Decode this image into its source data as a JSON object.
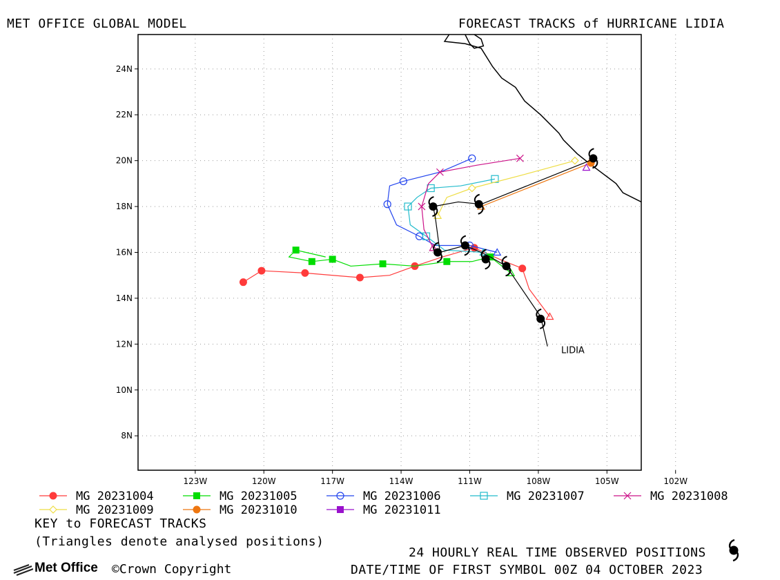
{
  "header": {
    "left_title": "MET OFFICE GLOBAL MODEL",
    "right_title": "FORECAST TRACKS of HURRICANE LIDIA"
  },
  "footer": {
    "key_title": "KEY to FORECAST TRACKS",
    "key_note": "(Triangles denote analysed positions)",
    "observed_label": "24 HOURLY REAL TIME OBSERVED POSITIONS",
    "first_symbol": "DATE/TIME OF FIRST SYMBOL 00Z 04 OCTOBER 2023",
    "logo_text": "Met Office",
    "copyright": "©Crown Copyright"
  },
  "chart_data": {
    "type": "scatter",
    "title": "FORECAST TRACKS of HURRICANE LIDIA",
    "xlim": [
      -125.5,
      -103.5
    ],
    "ylim": [
      6.5,
      25.5
    ],
    "xticks": [
      {
        "value": -123,
        "label": "123W"
      },
      {
        "value": -120,
        "label": "120W"
      },
      {
        "value": -117,
        "label": "117W"
      },
      {
        "value": -114,
        "label": "114W"
      },
      {
        "value": -111,
        "label": "111W"
      },
      {
        "value": -108,
        "label": "108W"
      },
      {
        "value": -105,
        "label": "105W"
      },
      {
        "value": -102,
        "label": "102W"
      }
    ],
    "yticks": [
      {
        "value": 8,
        "label": "8N"
      },
      {
        "value": 10,
        "label": "10N"
      },
      {
        "value": 12,
        "label": "12N"
      },
      {
        "value": 14,
        "label": "14N"
      },
      {
        "value": 16,
        "label": "16N"
      },
      {
        "value": 18,
        "label": "18N"
      },
      {
        "value": 20,
        "label": "20N"
      },
      {
        "value": 22,
        "label": "22N"
      },
      {
        "value": 24,
        "label": "24N"
      }
    ],
    "grid": true,
    "legend_placement": "bottom",
    "storm_label": {
      "text": "LIDIA",
      "lon": -107.0,
      "lat": 11.6
    },
    "observed_track": {
      "points": [
        [
          -107.6,
          11.9
        ],
        [
          -107.9,
          13.2
        ],
        [
          -109.4,
          15.4
        ],
        [
          -110.1,
          15.8
        ],
        [
          -110.5,
          16.0
        ],
        [
          -111.2,
          16.3
        ],
        [
          -112.3,
          16.0
        ],
        [
          -112.5,
          17.5
        ],
        [
          -112.6,
          18.0
        ],
        [
          -111.5,
          18.2
        ],
        [
          -110.5,
          18.1
        ],
        [
          -105.5,
          20.1
        ]
      ],
      "symbols": [
        [
          -107.9,
          13.1
        ],
        [
          -109.4,
          15.4
        ],
        [
          -110.3,
          15.7
        ],
        [
          -112.4,
          16.0
        ],
        [
          -111.2,
          16.3
        ],
        [
          -112.6,
          18.0
        ],
        [
          -110.6,
          18.1
        ],
        [
          -105.6,
          20.1
        ]
      ]
    },
    "coastline": [
      [
        [
          -111.9,
          25.5
        ],
        [
          -112.1,
          25.2
        ],
        [
          -111.2,
          25.1
        ],
        [
          -110.5,
          24.9
        ],
        [
          -110.0,
          24.1
        ],
        [
          -109.6,
          23.6
        ],
        [
          -109.0,
          23.2
        ],
        [
          -108.6,
          22.6
        ],
        [
          -107.9,
          22.0
        ],
        [
          -107.1,
          21.2
        ],
        [
          -106.9,
          20.9
        ],
        [
          -106.3,
          20.3
        ],
        [
          -105.8,
          19.9
        ],
        [
          -105.4,
          19.6
        ],
        [
          -105.0,
          19.3
        ],
        [
          -104.6,
          19.0
        ],
        [
          -104.3,
          18.6
        ],
        [
          -103.5,
          18.2
        ]
      ],
      [
        [
          -110.8,
          25.5
        ],
        [
          -110.5,
          25.3
        ],
        [
          -110.4,
          25.0
        ],
        [
          -110.8,
          24.9
        ],
        [
          -111.0,
          25.1
        ],
        [
          -111.2,
          25.5
        ]
      ]
    ],
    "series": [
      {
        "name": "MG 20231004",
        "color": "#ff3b3b",
        "marker": "circle-filled",
        "analysed": [
          -107.5,
          13.2
        ],
        "points": [
          [
            -107.5,
            13.2
          ],
          [
            -108.4,
            14.4
          ],
          [
            -108.7,
            15.3
          ],
          [
            -109.7,
            15.7
          ],
          [
            -110.8,
            16.2
          ],
          [
            -112.2,
            15.8
          ],
          [
            -113.4,
            15.4
          ],
          [
            -114.5,
            15.0
          ],
          [
            -115.8,
            14.9
          ],
          [
            -118.2,
            15.1
          ],
          [
            -120.1,
            15.2
          ],
          [
            -120.9,
            14.7
          ]
        ],
        "markers": [
          [
            -108.7,
            15.3
          ],
          [
            -110.8,
            16.2
          ],
          [
            -113.4,
            15.4
          ],
          [
            -115.8,
            14.9
          ],
          [
            -118.2,
            15.1
          ],
          [
            -120.1,
            15.2
          ],
          [
            -120.9,
            14.7
          ]
        ]
      },
      {
        "name": "MG 20231005",
        "color": "#00dd00",
        "marker": "square-filled",
        "analysed": [
          -109.2,
          15.1
        ],
        "points": [
          [
            -109.2,
            15.1
          ],
          [
            -110.1,
            15.8
          ],
          [
            -110.9,
            15.6
          ],
          [
            -112.0,
            15.6
          ],
          [
            -113.4,
            15.4
          ],
          [
            -114.8,
            15.5
          ],
          [
            -116.2,
            15.4
          ],
          [
            -117.0,
            15.7
          ],
          [
            -117.9,
            15.6
          ],
          [
            -118.9,
            15.8
          ],
          [
            -118.6,
            16.1
          ],
          [
            -117.3,
            15.8
          ]
        ],
        "markers": [
          [
            -110.1,
            15.8
          ],
          [
            -112.0,
            15.6
          ],
          [
            -114.8,
            15.5
          ],
          [
            -117.0,
            15.7
          ],
          [
            -117.9,
            15.6
          ],
          [
            -118.6,
            16.1
          ]
        ]
      },
      {
        "name": "MG 20231006",
        "color": "#2244ee",
        "marker": "circle-open",
        "analysed": [
          -109.8,
          16.0
        ],
        "points": [
          [
            -109.8,
            16.0
          ],
          [
            -111.0,
            16.3
          ],
          [
            -112.5,
            16.3
          ],
          [
            -113.2,
            16.7
          ],
          [
            -114.2,
            17.2
          ],
          [
            -114.6,
            18.1
          ],
          [
            -114.5,
            18.9
          ],
          [
            -113.9,
            19.1
          ],
          [
            -112.3,
            19.5
          ],
          [
            -110.9,
            20.1
          ]
        ],
        "markers": [
          [
            -111.0,
            16.3
          ],
          [
            -113.2,
            16.7
          ],
          [
            -114.6,
            18.1
          ],
          [
            -113.9,
            19.1
          ],
          [
            -110.9,
            20.1
          ]
        ]
      },
      {
        "name": "MG 20231007",
        "color": "#22bbcc",
        "marker": "square-open",
        "analysed": [
          -110.4,
          16.0
        ],
        "points": [
          [
            -110.4,
            16.0
          ],
          [
            -112.1,
            16.1
          ],
          [
            -112.9,
            16.7
          ],
          [
            -113.6,
            17.2
          ],
          [
            -113.7,
            18.0
          ],
          [
            -113.3,
            18.4
          ],
          [
            -112.7,
            18.8
          ],
          [
            -111.4,
            18.9
          ],
          [
            -109.9,
            19.2
          ]
        ],
        "markers": [
          [
            -112.9,
            16.7
          ],
          [
            -113.7,
            18.0
          ],
          [
            -112.7,
            18.8
          ],
          [
            -109.9,
            19.2
          ]
        ]
      },
      {
        "name": "MG 20231008",
        "color": "#cc1188",
        "marker": "x",
        "analysed": [
          -112.6,
          16.2
        ],
        "points": [
          [
            -112.6,
            16.2
          ],
          [
            -113.0,
            17.0
          ],
          [
            -113.1,
            18.0
          ],
          [
            -112.8,
            19.0
          ],
          [
            -112.3,
            19.5
          ],
          [
            -110.7,
            19.8
          ],
          [
            -108.8,
            20.1
          ]
        ],
        "markers": [
          [
            -113.1,
            18.0
          ],
          [
            -112.3,
            19.5
          ],
          [
            -108.8,
            20.1
          ]
        ]
      },
      {
        "name": "MG 20231009",
        "color": "#eedd44",
        "marker": "diamond-open",
        "analysed": [
          -112.4,
          17.6
        ],
        "points": [
          [
            -112.4,
            17.6
          ],
          [
            -112.0,
            18.4
          ],
          [
            -110.9,
            18.8
          ],
          [
            -108.6,
            19.4
          ],
          [
            -106.4,
            20.0
          ]
        ],
        "markers": [
          [
            -110.9,
            18.8
          ],
          [
            -106.4,
            20.0
          ]
        ]
      },
      {
        "name": "MG 20231010",
        "color": "#ee7711",
        "marker": "circle-filled",
        "analysed": [
          -110.5,
          18.0
        ],
        "points": [
          [
            -110.5,
            18.0
          ],
          [
            -105.7,
            19.9
          ]
        ],
        "markers": [
          [
            -105.7,
            19.9
          ]
        ]
      },
      {
        "name": "MG 20231011",
        "color": "#9911cc",
        "marker": "square-filled",
        "analysed": [
          -105.9,
          19.7
        ],
        "points": [
          [
            -105.9,
            19.7
          ]
        ],
        "markers": []
      }
    ]
  }
}
